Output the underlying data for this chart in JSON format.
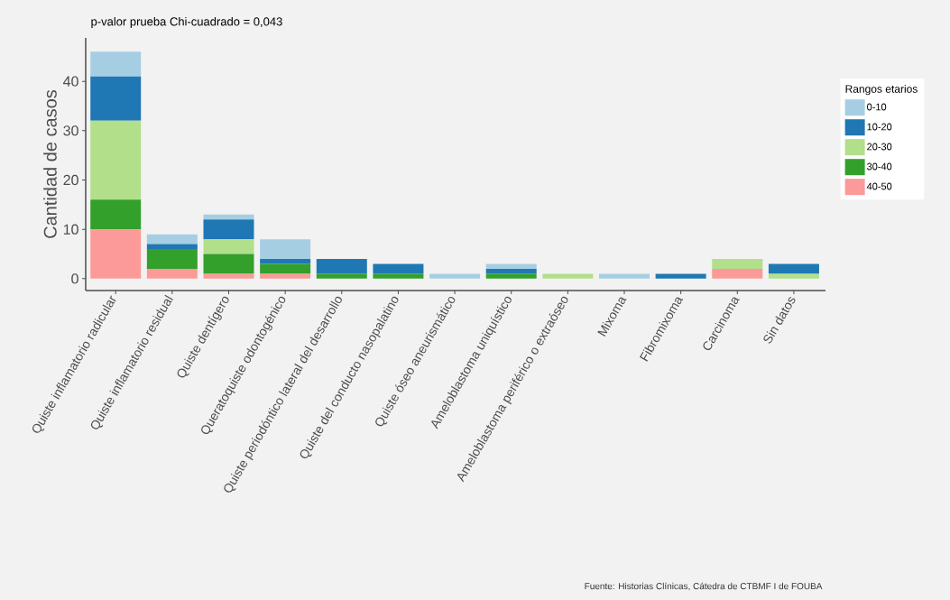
{
  "chart_data": {
    "type": "bar",
    "title": "p-valor prueba Chi-cuadrado = 0,043",
    "ylabel": "Cantidad de casos",
    "legend_title": "Rangos etarios",
    "categories": [
      "Quiste inflamatorio radicular",
      "Quiste inflamatorio residual",
      "Quiste dentígero",
      "Queratoquiste odontogénico",
      "Quiste periodóntico lateral del desarrollo",
      "Quiste del conducto nasopalatino",
      "Quiste óseo aneurismático",
      "Ameloblastoma uniquístico",
      "Ameloblastoma periférico o extraóseo",
      "Mixoma",
      "Fibromixoma",
      "Carcinoma",
      "Sin datos"
    ],
    "stacked": true,
    "series": [
      {
        "name": "40-50",
        "color": "#fb9a99",
        "values": [
          10,
          2,
          1,
          1,
          0,
          0,
          0,
          0,
          0,
          0,
          0,
          2,
          0
        ]
      },
      {
        "name": "30-40",
        "color": "#33a02c",
        "values": [
          6,
          4,
          4,
          2,
          1,
          1,
          0,
          1,
          0,
          0,
          0,
          0,
          0
        ]
      },
      {
        "name": "20-30",
        "color": "#b2df8a",
        "values": [
          16,
          0,
          3,
          0,
          0,
          0,
          0,
          0,
          1,
          0,
          0,
          2,
          1
        ]
      },
      {
        "name": "10-20",
        "color": "#1f78b4",
        "values": [
          9,
          1,
          4,
          1,
          3,
          2,
          0,
          1,
          0,
          0,
          1,
          0,
          2
        ]
      },
      {
        "name": "0-10",
        "color": "#a6cee3",
        "values": [
          5,
          2,
          1,
          4,
          0,
          0,
          1,
          1,
          0,
          1,
          0,
          0,
          0
        ]
      }
    ],
    "ylim": [
      -2.4,
      48.8
    ],
    "yticks": [
      0,
      10,
      20,
      30,
      40
    ],
    "grid": false,
    "legend": "right",
    "annotations": [
      "Fuente: Historias Clínicas, Cátedra de CTBMF I de FOUBA"
    ]
  }
}
